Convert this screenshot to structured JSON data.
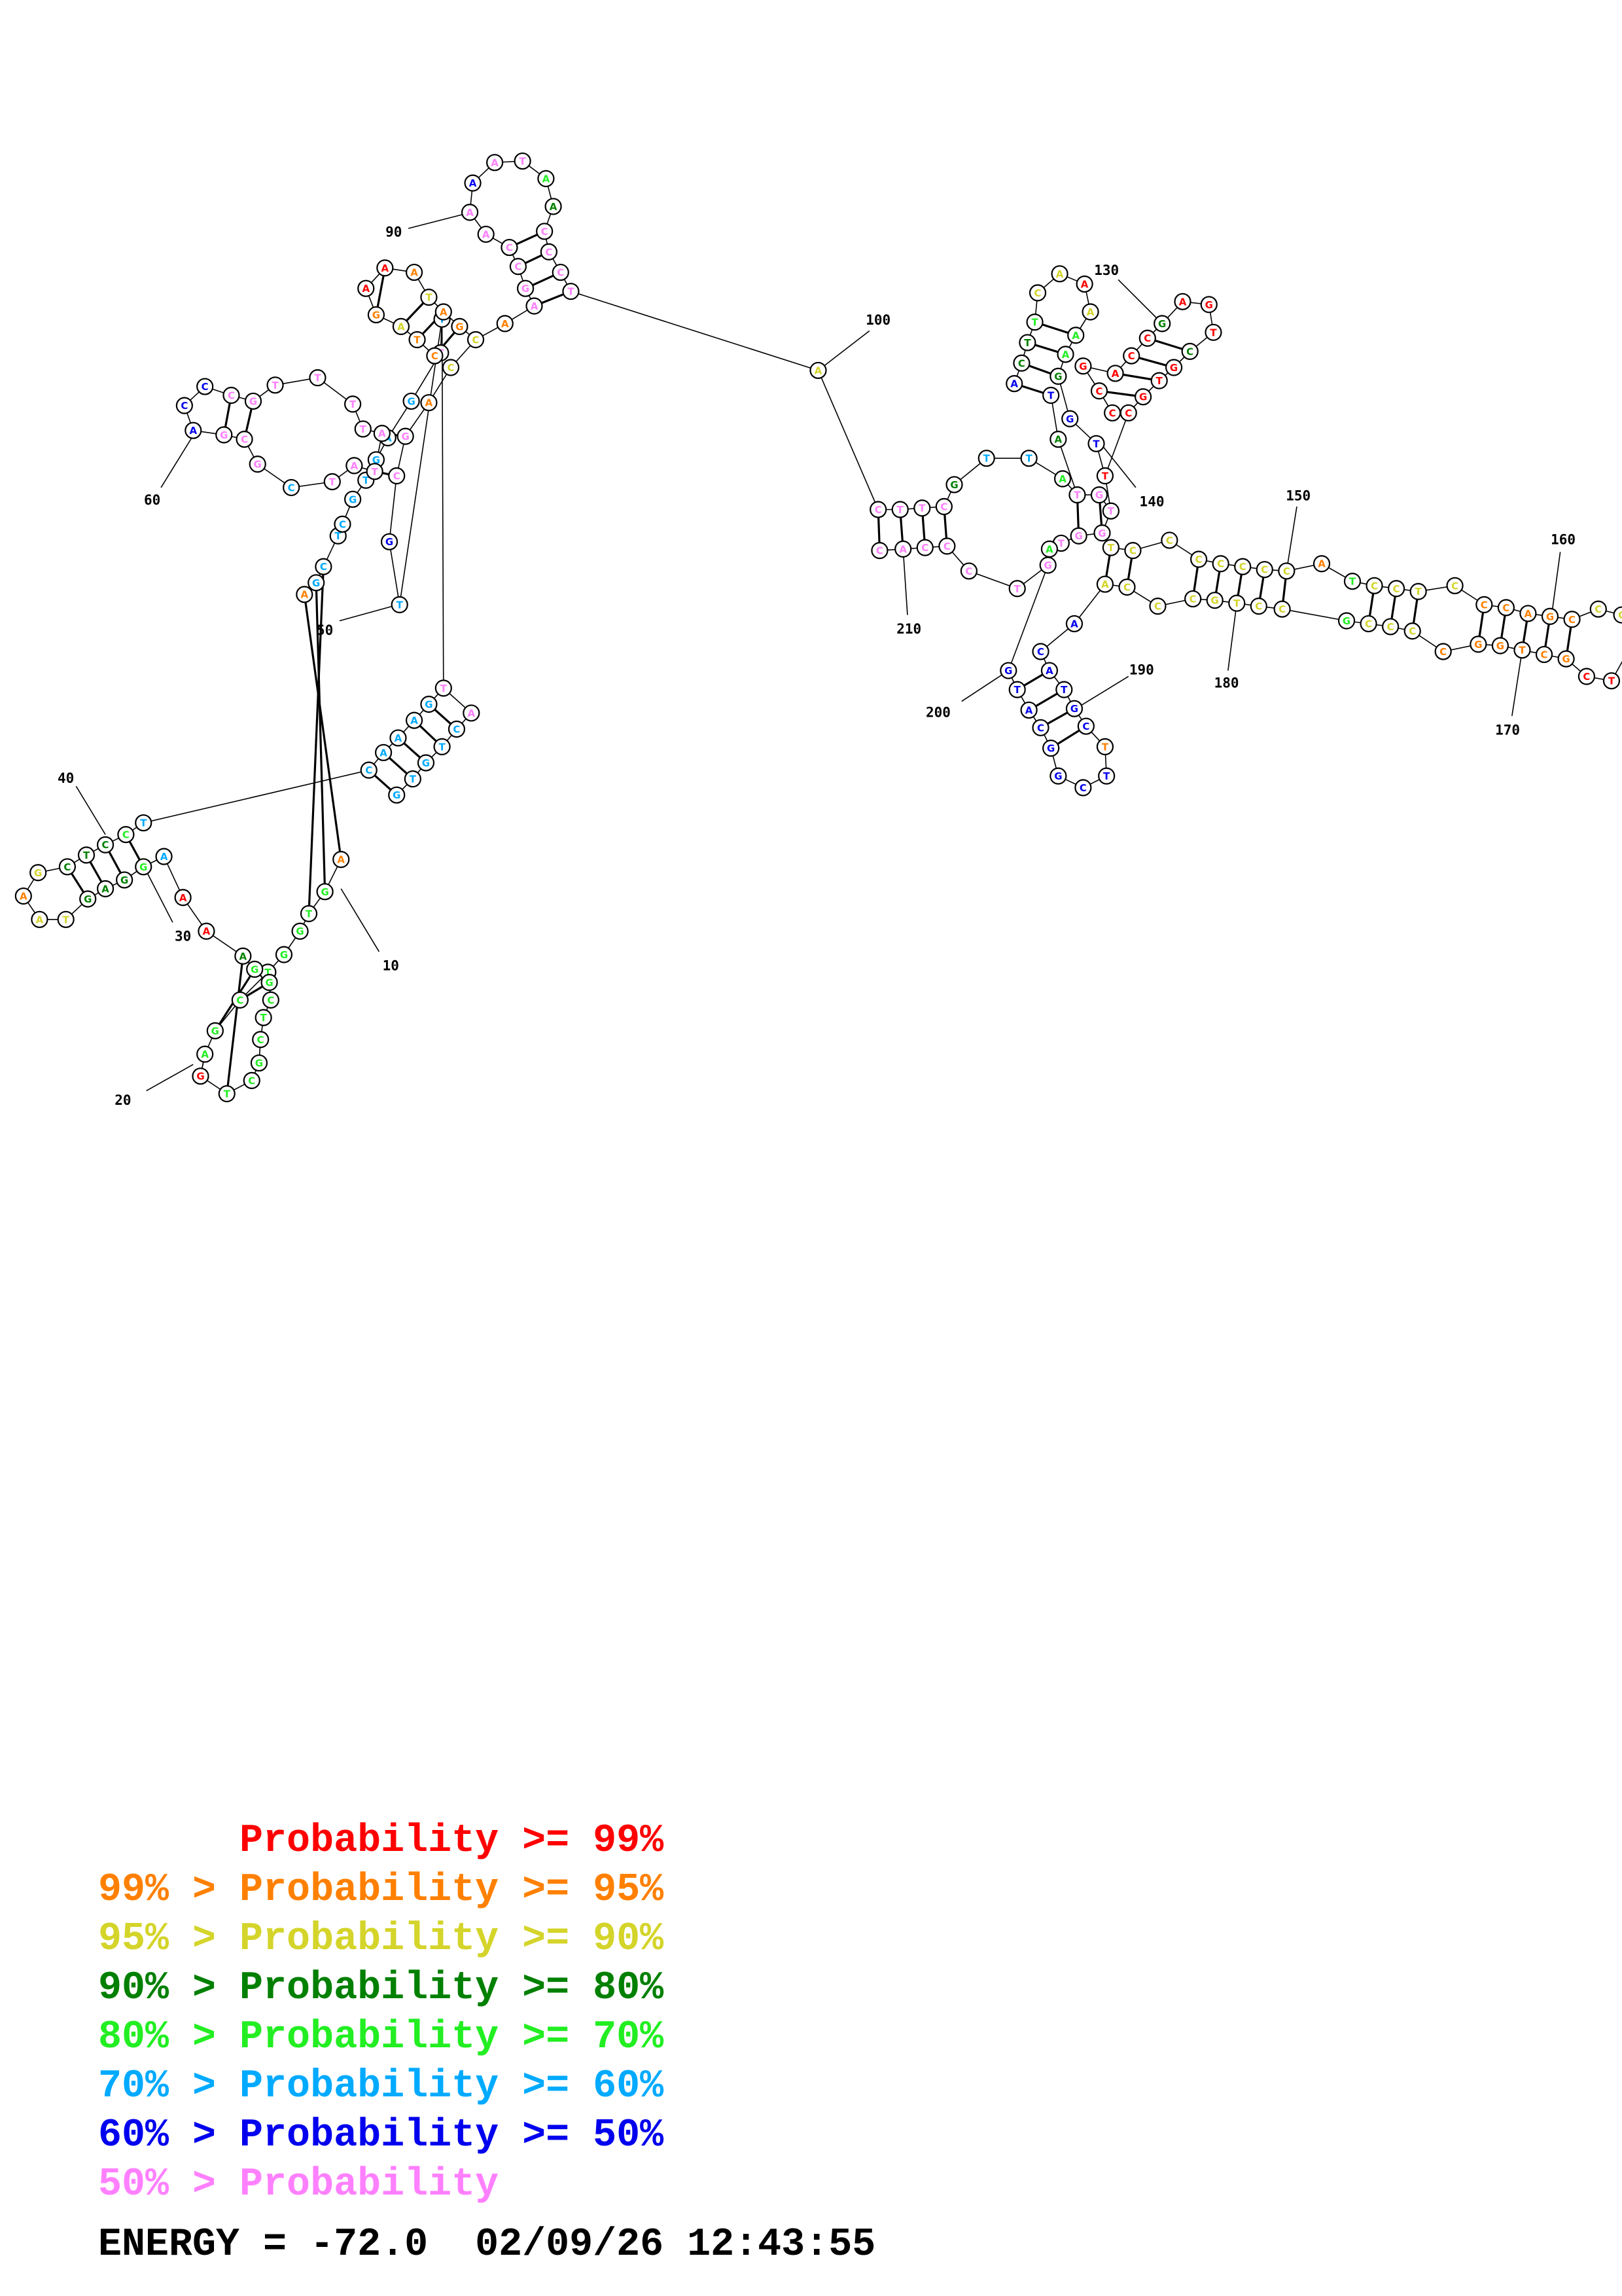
{
  "colors": {
    "red": "#ff0000",
    "orange": "#ff8000",
    "yellow": "#d4d42a",
    "dark_green": "#008000",
    "green": "#22ee22",
    "cyan": "#00aaff",
    "blue": "#0000ee",
    "pink": "#ff80ff"
  },
  "legend": [
    {
      "left": "",
      "mid": "Probability",
      "right": ">= 99%",
      "color": "red"
    },
    {
      "left": "99% >",
      "mid": "Probability",
      "right": ">= 95%",
      "color": "orange"
    },
    {
      "left": "95% >",
      "mid": "Probability",
      "right": ">= 90%",
      "color": "yellow"
    },
    {
      "left": "90% >",
      "mid": "Probability",
      "right": ">= 80%",
      "color": "dark_green"
    },
    {
      "left": "80% >",
      "mid": "Probability",
      "right": ">= 70%",
      "color": "green"
    },
    {
      "left": "70% >",
      "mid": "Probability",
      "right": ">= 60%",
      "color": "cyan"
    },
    {
      "left": "60% >",
      "mid": "Probability",
      "right": ">= 50%",
      "color": "blue"
    },
    {
      "left": "50% >",
      "mid": "Probability",
      "right": "",
      "color": "pink"
    }
  ],
  "energy_label": "ENERGY =",
  "energy": "-72.0",
  "timestamp": "02/09/26 12:43:55",
  "position_labels": [
    "10",
    "20",
    "30",
    "40",
    "50",
    "60",
    "90",
    "100",
    "130",
    "140",
    "150",
    "160",
    "170",
    "180",
    "190",
    "200",
    "210"
  ]
}
